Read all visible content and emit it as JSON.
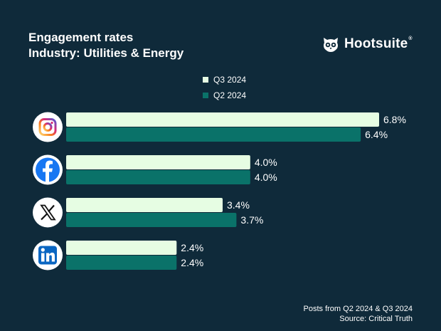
{
  "header": {
    "title_line1": "Engagement rates",
    "title_line2": "Industry: Utilities & Energy"
  },
  "brand": {
    "name": "Hootsuite",
    "reg": "®",
    "icon": "owl-icon"
  },
  "footer": {
    "line1": "Posts from Q2 2024 & Q3 2024",
    "line2": "Source: Critical Truth"
  },
  "colors": {
    "background": "#0f2a3a",
    "q3": "#e6fde3",
    "q2": "#0a7269",
    "text": "#ffffff"
  },
  "chart_data": {
    "type": "bar",
    "orientation": "horizontal",
    "title": "Engagement rates",
    "subtitle": "Industry: Utilities & Energy",
    "categories": [
      "Instagram",
      "Facebook",
      "X",
      "LinkedIn"
    ],
    "category_icons": [
      "instagram-icon",
      "facebook-icon",
      "x-icon",
      "linkedin-icon"
    ],
    "series": [
      {
        "name": "Q3 2024",
        "values": [
          6.8,
          4.0,
          3.4,
          2.4
        ],
        "labels": [
          "6.8%",
          "4.0%",
          "3.4%",
          "2.4%"
        ]
      },
      {
        "name": "Q2 2024",
        "values": [
          6.4,
          4.0,
          3.7,
          2.4
        ],
        "labels": [
          "6.4%",
          "4.0%",
          "3.7%",
          "2.4%"
        ]
      }
    ],
    "xlim": [
      0,
      7.5
    ],
    "legend": "top-center",
    "grid": false
  }
}
